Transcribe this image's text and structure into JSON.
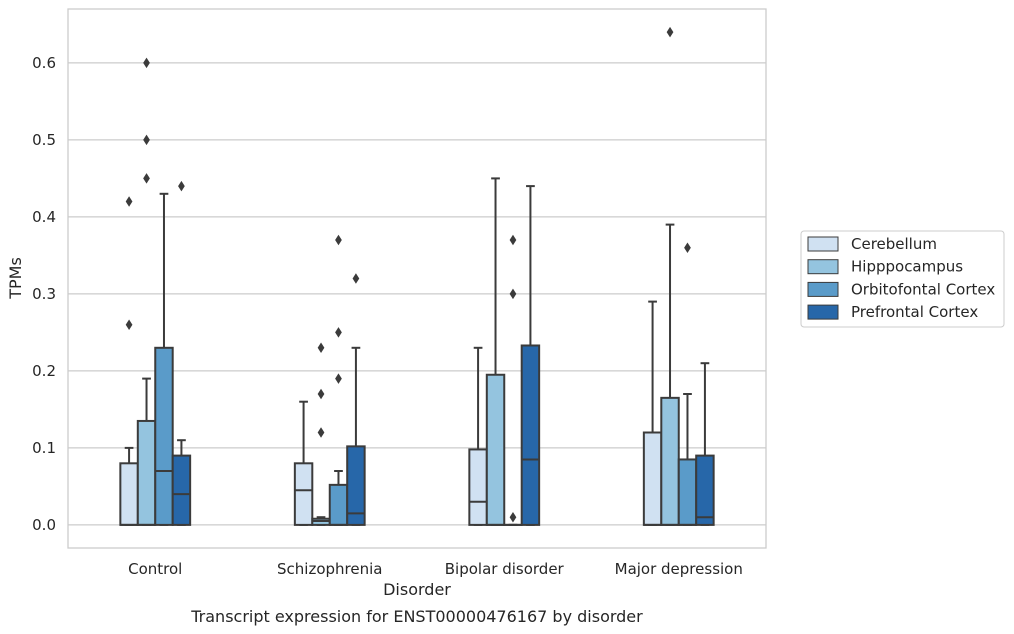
{
  "chart_data": {
    "type": "box",
    "xlabel": "Disorder",
    "ylabel": "TPMs",
    "caption": "Transcript expression for ENST00000476167 by disorder",
    "ylim": [
      -0.03,
      0.67
    ],
    "yticks": [
      0.0,
      0.1,
      0.2,
      0.3,
      0.4,
      0.5,
      0.6
    ],
    "ytick_labels": [
      "0.0",
      "0.1",
      "0.2",
      "0.3",
      "0.4",
      "0.5",
      "0.6"
    ],
    "grid": "horizontal",
    "legend_position": "right",
    "categories": [
      "Control",
      "Schizophrenia",
      "Bipolar disorder",
      "Major depression"
    ],
    "series": [
      {
        "name": "Cerebellum",
        "color": "#d0e1f2",
        "boxes": [
          {
            "q1": 0.0,
            "median": 0.0,
            "q3": 0.08,
            "whisker_low": 0.0,
            "whisker_high": 0.1,
            "outliers": [
              0.26,
              0.42
            ]
          },
          {
            "q1": 0.0,
            "median": 0.045,
            "q3": 0.08,
            "whisker_low": 0.0,
            "whisker_high": 0.16,
            "outliers": []
          },
          {
            "q1": 0.0,
            "median": 0.03,
            "q3": 0.098,
            "whisker_low": 0.0,
            "whisker_high": 0.23,
            "outliers": []
          },
          {
            "q1": 0.0,
            "median": 0.0,
            "q3": 0.12,
            "whisker_low": 0.0,
            "whisker_high": 0.29,
            "outliers": []
          }
        ]
      },
      {
        "name": "Hipppocampus",
        "color": "#94c4df",
        "boxes": [
          {
            "q1": 0.0,
            "median": 0.0,
            "q3": 0.135,
            "whisker_low": 0.0,
            "whisker_high": 0.19,
            "outliers": [
              0.45,
              0.5,
              0.6
            ]
          },
          {
            "q1": 0.0,
            "median": 0.005,
            "q3": 0.008,
            "whisker_low": 0.0,
            "whisker_high": 0.01,
            "outliers": [
              0.12,
              0.17,
              0.23
            ]
          },
          {
            "q1": 0.0,
            "median": 0.0,
            "q3": 0.195,
            "whisker_low": 0.0,
            "whisker_high": 0.45,
            "outliers": []
          },
          {
            "q1": 0.0,
            "median": 0.0,
            "q3": 0.165,
            "whisker_low": 0.0,
            "whisker_high": 0.39,
            "outliers": [
              0.64
            ]
          }
        ]
      },
      {
        "name": "Orbitofontal Cortex",
        "color": "#5a9bc9",
        "boxes": [
          {
            "q1": 0.0,
            "median": 0.07,
            "q3": 0.23,
            "whisker_low": 0.0,
            "whisker_high": 0.43,
            "outliers": []
          },
          {
            "q1": 0.0,
            "median": 0.0,
            "q3": 0.052,
            "whisker_low": 0.0,
            "whisker_high": 0.07,
            "outliers": [
              0.19,
              0.25,
              0.37
            ]
          },
          {
            "q1": 0.0,
            "median": 0.0,
            "q3": 0.0,
            "whisker_low": 0.0,
            "whisker_high": 0.0,
            "outliers": [
              0.01,
              0.3,
              0.37
            ]
          },
          {
            "q1": 0.0,
            "median": 0.0,
            "q3": 0.085,
            "whisker_low": 0.0,
            "whisker_high": 0.17,
            "outliers": [
              0.36
            ]
          }
        ]
      },
      {
        "name": "Prefrontal Cortex",
        "color": "#2767a9",
        "boxes": [
          {
            "q1": 0.0,
            "median": 0.04,
            "q3": 0.09,
            "whisker_low": 0.0,
            "whisker_high": 0.11,
            "outliers": [
              0.44
            ]
          },
          {
            "q1": 0.0,
            "median": 0.015,
            "q3": 0.102,
            "whisker_low": 0.0,
            "whisker_high": 0.23,
            "outliers": [
              0.32
            ]
          },
          {
            "q1": 0.0,
            "median": 0.085,
            "q3": 0.233,
            "whisker_low": 0.0,
            "whisker_high": 0.44,
            "outliers": []
          },
          {
            "q1": 0.0,
            "median": 0.01,
            "q3": 0.09,
            "whisker_low": 0.0,
            "whisker_high": 0.21,
            "outliers": []
          }
        ]
      }
    ]
  }
}
